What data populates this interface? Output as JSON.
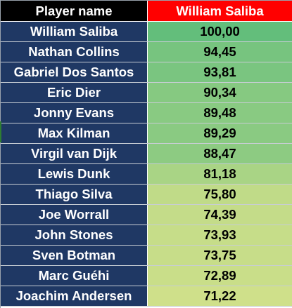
{
  "header": {
    "player_col": "Player name",
    "score_col": "William Saliba"
  },
  "rows": [
    {
      "name": "William Saliba",
      "score": "100,00",
      "color": "#63be7b"
    },
    {
      "name": "Nathan Collins",
      "score": "94,45",
      "color": "#77c47f"
    },
    {
      "name": "Gabriel Dos Santos",
      "score": "93,81",
      "color": "#7ac580"
    },
    {
      "name": "Eric Dier",
      "score": "90,34",
      "color": "#86c981"
    },
    {
      "name": "Jonny Evans",
      "score": "89,48",
      "color": "#89ca82"
    },
    {
      "name": "Max Kilman",
      "score": "89,29",
      "color": "#8aca82"
    },
    {
      "name": "Virgil van Dijk",
      "score": "88,47",
      "color": "#8dcb82"
    },
    {
      "name": "Lewis Dunk",
      "score": "81,18",
      "color": "#a9d485"
    },
    {
      "name": "Thiago Silva",
      "score": "75,80",
      "color": "#c0db88"
    },
    {
      "name": "Joe Worrall",
      "score": "74,39",
      "color": "#c4dc89"
    },
    {
      "name": "John Stones",
      "score": "73,93",
      "color": "#c6dd89"
    },
    {
      "name": "Sven Botman",
      "score": "73,75",
      "color": "#c7dd89"
    },
    {
      "name": "Marc Guéhi",
      "score": "72,89",
      "color": "#c9de89"
    },
    {
      "name": "Joachim Andersen",
      "score": "71,22",
      "color": "#cfe08a"
    }
  ]
}
